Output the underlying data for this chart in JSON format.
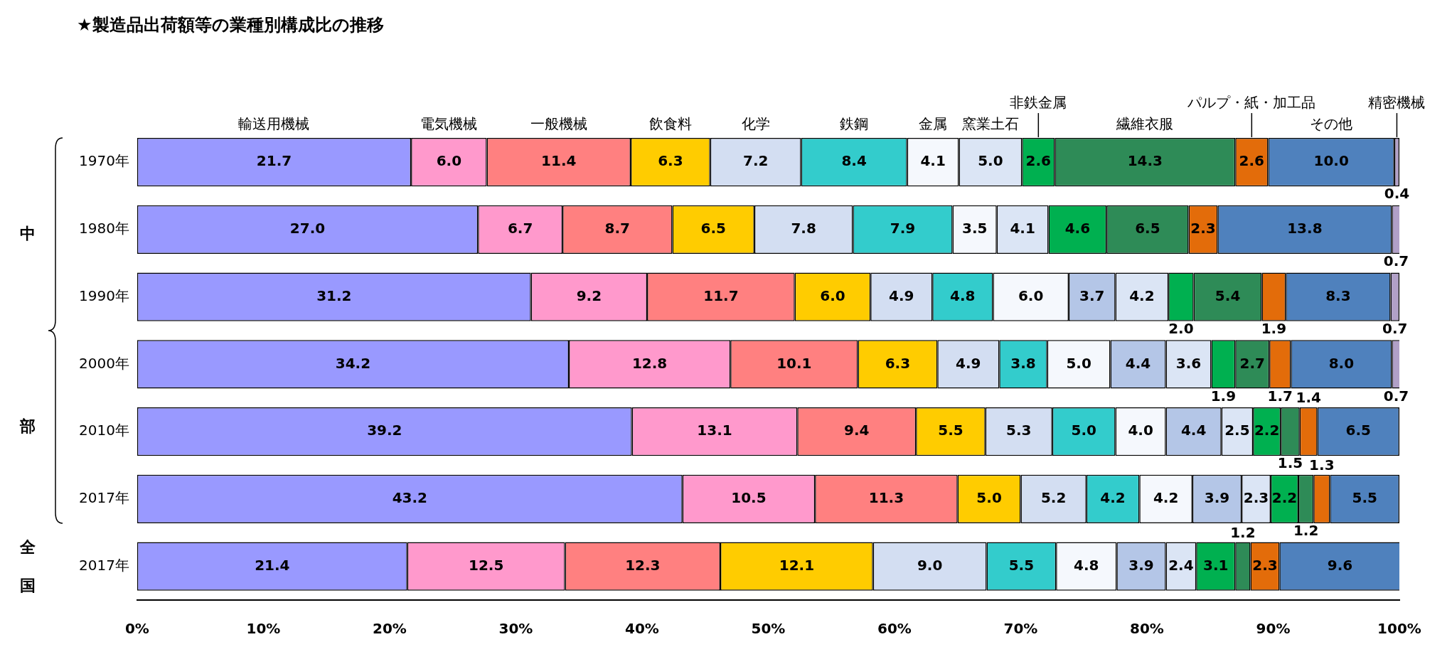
{
  "chart_data": {
    "type": "bar",
    "orientation": "horizontal",
    "stacked": true,
    "title": "★製造品出荷額等の業種別構成比の推移",
    "categories": [
      "1970年",
      "1980年",
      "1990年",
      "2000年",
      "2010年",
      "2017年",
      "2017年"
    ],
    "series": [
      {
        "name": "輸送用機械",
        "color": "#9999ff",
        "values": [
          21.7,
          27.0,
          31.2,
          34.2,
          39.2,
          43.2,
          21.4
        ],
        "value_labels": [
          "21.7",
          "27.0",
          "31.2",
          "34.2",
          "39.2",
          "43.2",
          "21.4"
        ]
      },
      {
        "name": "電気機械",
        "color": "#ff99cc",
        "values": [
          6.0,
          6.7,
          9.2,
          12.8,
          13.1,
          10.5,
          12.5
        ],
        "value_labels": [
          "6.0",
          "6.7",
          "9.2",
          "12.8",
          "13.1",
          "10.5",
          "12.5"
        ]
      },
      {
        "name": "一般機械",
        "color": "#ff8080",
        "values": [
          11.4,
          8.7,
          11.7,
          10.1,
          9.4,
          11.3,
          12.3
        ],
        "value_labels": [
          "11.4",
          "8.7",
          "11.7",
          "10.1",
          "9.4",
          "11.3",
          "12.3"
        ]
      },
      {
        "name": "飲食料",
        "color": "#ffcc00",
        "values": [
          6.3,
          6.5,
          6.0,
          6.3,
          5.5,
          5.0,
          12.1
        ],
        "value_labels": [
          "6.3",
          "6.5",
          "6.0",
          "6.3",
          "5.5",
          "5.0",
          "12.1"
        ]
      },
      {
        "name": "化学",
        "color": "#d3def2",
        "values": [
          7.2,
          7.8,
          4.9,
          4.9,
          5.3,
          5.2,
          9.0
        ],
        "value_labels": [
          "7.2",
          "7.8",
          "4.9",
          "4.9",
          "5.3",
          "5.2",
          "9.0"
        ]
      },
      {
        "name": "鉄鋼",
        "color": "#33cccc",
        "values": [
          8.4,
          7.9,
          4.8,
          3.8,
          5.0,
          4.2,
          5.5
        ],
        "value_labels": [
          "8.4",
          "7.9",
          "4.8",
          "3.8",
          "5.0",
          "4.2",
          "5.5"
        ]
      },
      {
        "name": "金属",
        "color": "#f5f8fd",
        "values": [
          4.1,
          3.5,
          6.0,
          5.0,
          4.0,
          4.2,
          4.8
        ],
        "value_labels": [
          "4.1",
          "3.5",
          "6.0",
          "5.0",
          "4.0",
          "4.2",
          "4.8"
        ]
      },
      {
        "color": "#b4c6e7",
        "values": [
          null,
          null,
          3.7,
          4.4,
          4.4,
          3.9,
          3.9
        ],
        "value_labels": [
          null,
          null,
          "3.7",
          "4.4",
          "4.4",
          "3.9",
          "3.9"
        ]
      },
      {
        "name": "窯業土石",
        "color": "#dbe5f5",
        "values": [
          5.0,
          4.1,
          4.2,
          3.6,
          2.5,
          2.3,
          2.4
        ],
        "value_labels": [
          "5.0",
          "4.1",
          "4.2",
          "3.6",
          "2.5",
          "2.3",
          "2.4"
        ]
      },
      {
        "name": "非鉄金属",
        "color": "#00b050",
        "values": [
          2.6,
          4.6,
          2.0,
          1.9,
          2.2,
          2.2,
          3.1
        ],
        "value_labels": [
          "2.6",
          "4.6",
          "2.0",
          "1.9",
          "2.2",
          "2.2",
          "3.1"
        ]
      },
      {
        "name": "繊維衣服",
        "color": "#2e8b57",
        "values": [
          14.3,
          6.5,
          5.4,
          2.7,
          1.5,
          1.2,
          1.2
        ],
        "value_labels": [
          "14.3",
          "6.5",
          "5.4",
          "2.7",
          "1.5",
          "1.2",
          "1.2"
        ]
      },
      {
        "name": "パルプ・紙・加工品",
        "color": "#e36c0a",
        "values": [
          2.6,
          2.3,
          1.9,
          1.7,
          1.4,
          1.3,
          2.3
        ],
        "value_labels": [
          "2.6",
          "2.3",
          "1.9",
          "1.7",
          "1.4",
          "1.3",
          "2.3"
        ]
      },
      {
        "name": "その他",
        "color": "#4f81bd",
        "values": [
          10.0,
          13.8,
          8.3,
          8.0,
          6.5,
          5.5,
          9.6
        ],
        "value_labels": [
          "10.0",
          "13.8",
          "8.3",
          "8.0",
          "6.5",
          "5.5",
          "9.6"
        ]
      },
      {
        "name": "精密機械",
        "color": "#b1a0c7",
        "values": [
          0.4,
          0.7,
          0.7,
          0.7,
          null,
          null,
          null
        ],
        "value_labels": [
          "0.4",
          "0.7",
          "0.7",
          "0.7",
          null,
          null,
          null
        ]
      }
    ],
    "xlim": [
      0,
      100
    ],
    "xticks": [
      {
        "value": 0,
        "label": "0%"
      },
      {
        "value": 10,
        "label": "10%"
      },
      {
        "value": 20,
        "label": "20%"
      },
      {
        "value": 30,
        "label": "30%"
      },
      {
        "value": 40,
        "label": "40%"
      },
      {
        "value": 50,
        "label": "50%"
      },
      {
        "value": 60,
        "label": "60%"
      },
      {
        "value": 70,
        "label": "70%"
      },
      {
        "value": 80,
        "label": "80%"
      },
      {
        "value": 90,
        "label": "90%"
      },
      {
        "value": 100,
        "label": "100%"
      }
    ],
    "legend": "top",
    "grid": false,
    "annotations": [
      "中部",
      "全国"
    ]
  }
}
